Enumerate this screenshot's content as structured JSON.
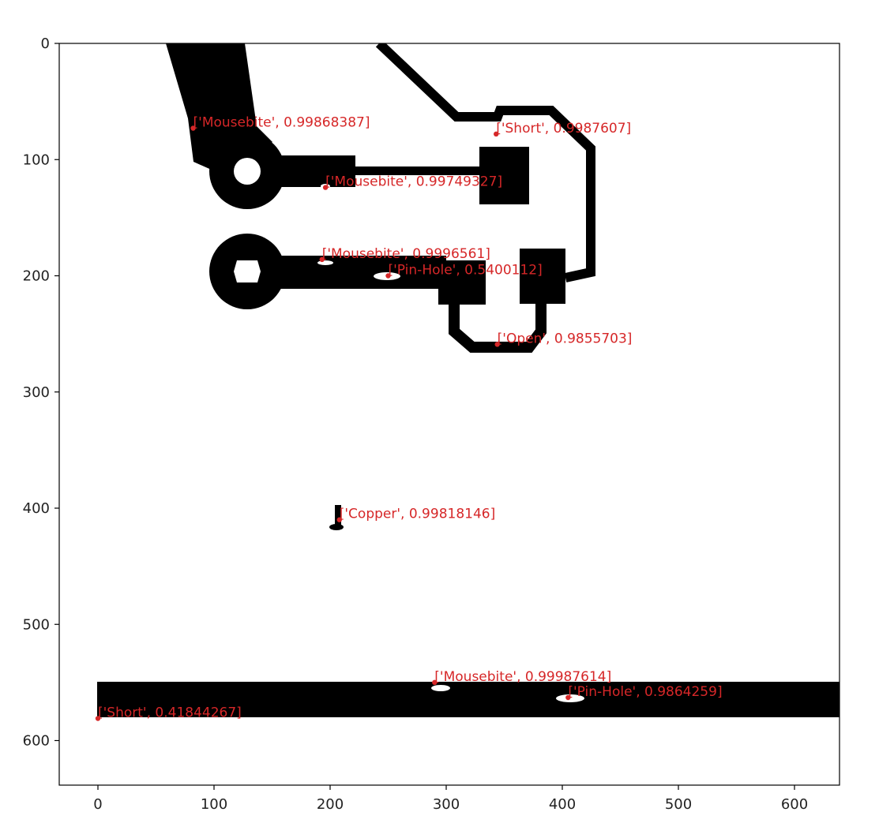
{
  "chart_data": {
    "type": "scatter",
    "title": "",
    "xlabel": "",
    "ylabel": "",
    "xlim": [
      -33,
      640
    ],
    "ylim": [
      640,
      0
    ],
    "y_inverted": true,
    "grid": false,
    "x_ticks": [
      0,
      100,
      200,
      300,
      400,
      500,
      600
    ],
    "y_ticks": [
      0,
      100,
      200,
      300,
      400,
      500,
      600
    ],
    "background_image": "binary PCB trace image (black copper on white)",
    "marker_color": "#d62728",
    "detections": [
      {
        "label": "['Mousebite', 0.99868387]",
        "x": 82,
        "y": 73
      },
      {
        "label": "['Short', 0.9987607]",
        "x": 343,
        "y": 78
      },
      {
        "label": "['Mousebite', 0.99749327]",
        "x": 196,
        "y": 124
      },
      {
        "label": "['Mousebite', 0.9996561]",
        "x": 193,
        "y": 186
      },
      {
        "label": "['Pin-Hole', 0.5400112]",
        "x": 250,
        "y": 200
      },
      {
        "label": "['Open', 0.9855703]",
        "x": 344,
        "y": 259
      },
      {
        "label": "['Copper', 0.99818146]",
        "x": 208,
        "y": 410
      },
      {
        "label": "['Mousebite', 0.99987614]",
        "x": 290,
        "y": 550
      },
      {
        "label": "['Pin-Hole', 0.9864259]",
        "x": 405,
        "y": 563
      },
      {
        "label": "['Short', 0.41844267]",
        "x": 0,
        "y": 581
      }
    ]
  }
}
